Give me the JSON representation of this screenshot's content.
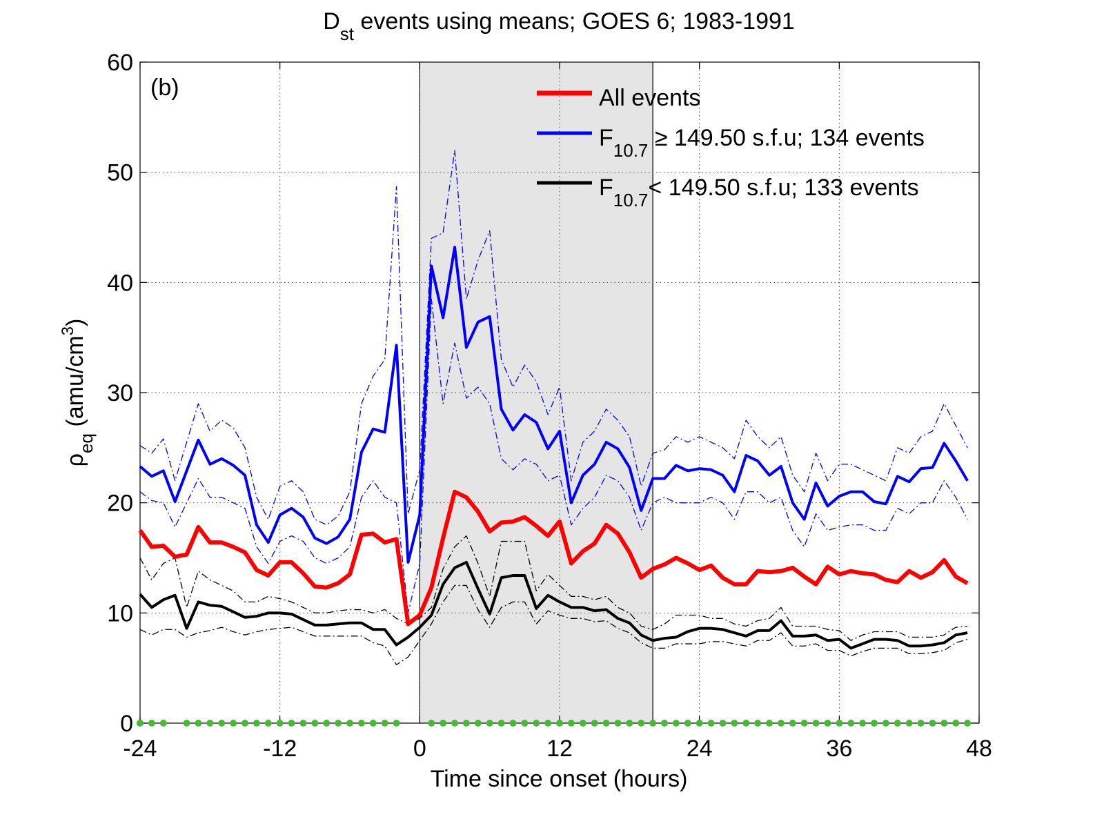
{
  "chart_data": {
    "type": "line",
    "title": {
      "main": "D",
      "sub": "st",
      "rest": " events using means; GOES 6; 1983-1991"
    },
    "x_label": "Time since onset (hours)",
    "y_label": {
      "main": "ρ",
      "sub": "eq",
      "rest": " (amu/cm",
      "sup": "3",
      "end": ")"
    },
    "annotation": "(b)",
    "x": [
      -24,
      -23,
      -22,
      -21,
      -20,
      -19,
      -18,
      -17,
      -16,
      -15,
      -14,
      -13,
      -12,
      -11,
      -10,
      -9,
      -8,
      -7,
      -6,
      -5,
      -4,
      -3,
      -2,
      -1,
      0,
      1,
      2,
      3,
      4,
      5,
      6,
      7,
      8,
      9,
      10,
      11,
      12,
      13,
      14,
      15,
      16,
      17,
      18,
      19,
      20,
      21,
      22,
      23,
      24,
      25,
      26,
      27,
      28,
      29,
      30,
      31,
      32,
      33,
      34,
      35,
      36,
      37,
      38,
      39,
      40,
      41,
      42,
      43,
      44,
      45,
      46,
      47
    ],
    "xlim": [
      -24,
      48
    ],
    "xticks": [
      -24,
      -12,
      0,
      12,
      24,
      36,
      48
    ],
    "ylim": [
      0,
      60
    ],
    "yticks": [
      0,
      10,
      20,
      30,
      40,
      50,
      60
    ],
    "grid": true,
    "shade": [
      0,
      20
    ],
    "series": [
      {
        "name": "All events",
        "color": "#ff0000",
        "width": 6,
        "values": [
          17.5,
          16.0,
          16.1,
          15.1,
          15.3,
          17.8,
          16.4,
          16.4,
          16.0,
          15.5,
          13.9,
          13.4,
          14.6,
          14.6,
          13.6,
          12.4,
          12.3,
          12.7,
          13.5,
          17.1,
          17.2,
          16.4,
          16.7,
          9.0,
          9.8,
          12.3,
          16.8,
          21.0,
          20.5,
          19.2,
          17.4,
          18.2,
          18.3,
          18.7,
          17.9,
          17.0,
          18.3,
          14.5,
          15.6,
          16.3,
          18.0,
          17.2,
          15.5,
          13.2,
          14.0,
          14.4,
          15.0,
          14.5,
          13.9,
          14.3,
          13.2,
          12.6,
          12.6,
          13.8,
          13.7,
          13.8,
          14.1,
          13.3,
          12.6,
          14.2,
          13.5,
          13.8,
          13.6,
          13.5,
          13.0,
          12.8,
          13.8,
          13.2,
          13.7,
          14.8,
          13.3,
          12.7
        ]
      },
      {
        "name": "F",
        "name_sub": "10.7",
        "name_rest": " ≥ 149.50 s.f.u; 134 events",
        "color": "#0000ff",
        "width": 4,
        "values": [
          23.3,
          22.4,
          22.9,
          20.1,
          22.9,
          25.7,
          23.5,
          24.0,
          23.4,
          22.5,
          18.0,
          16.4,
          18.9,
          19.5,
          18.7,
          16.8,
          16.3,
          16.9,
          18.5,
          24.6,
          26.7,
          26.4,
          34.3,
          14.6,
          18.9,
          41.5,
          36.8,
          43.2,
          34.1,
          36.4,
          36.9,
          28.5,
          26.6,
          28.0,
          27.3,
          24.9,
          26.5,
          20.0,
          22.5,
          23.5,
          25.5,
          24.9,
          23.2,
          19.3,
          22.2,
          22.2,
          23.4,
          22.9,
          23.1,
          23.0,
          22.5,
          21.0,
          24.3,
          23.8,
          22.5,
          23.3,
          20.0,
          18.5,
          21.8,
          19.7,
          20.6,
          21.0,
          21.0,
          20.1,
          19.9,
          22.4,
          21.9,
          23.1,
          23.2,
          25.4,
          23.8,
          22.0
        ],
        "upper": [
          25.2,
          24.5,
          25.8,
          22.0,
          25.5,
          29.0,
          26.5,
          27.5,
          26.8,
          25.0,
          20.5,
          18.5,
          21.5,
          22.0,
          21.0,
          18.5,
          18.0,
          18.8,
          21.0,
          29.0,
          31.5,
          33.0,
          48.7,
          19.0,
          23.0,
          44.0,
          44.5,
          52.0,
          38.5,
          42.0,
          44.7,
          33.0,
          30.5,
          32.5,
          31.0,
          28.0,
          30.5,
          22.0,
          25.5,
          26.5,
          28.5,
          27.5,
          26.0,
          21.5,
          24.5,
          24.8,
          26.0,
          25.5,
          26.0,
          25.5,
          25.0,
          24.0,
          27.5,
          26.0,
          25.0,
          26.0,
          22.5,
          21.0,
          24.5,
          22.0,
          23.5,
          23.5,
          23.0,
          22.5,
          22.0,
          25.0,
          24.5,
          26.0,
          26.5,
          29.0,
          27.0,
          25.0
        ],
        "lower": [
          21.0,
          20.2,
          20.0,
          17.8,
          20.0,
          22.2,
          20.5,
          20.5,
          20.0,
          19.5,
          16.0,
          14.5,
          16.5,
          17.0,
          16.5,
          15.0,
          14.5,
          15.0,
          16.0,
          20.5,
          22.0,
          20.5,
          20.0,
          10.0,
          14.5,
          38.5,
          29.0,
          34.5,
          29.5,
          30.5,
          29.0,
          24.0,
          23.0,
          24.0,
          23.5,
          22.0,
          22.5,
          18.0,
          19.5,
          20.5,
          22.5,
          22.0,
          20.5,
          17.5,
          20.0,
          20.5,
          20.0,
          20.0,
          20.0,
          20.5,
          20.0,
          18.5,
          21.0,
          21.0,
          20.0,
          20.5,
          17.5,
          16.0,
          19.0,
          17.5,
          17.8,
          18.0,
          18.0,
          17.5,
          17.5,
          19.5,
          19.0,
          20.0,
          20.0,
          22.0,
          20.5,
          18.5
        ]
      },
      {
        "name": "F",
        "name_sub": "10.7",
        "name_rest": "< 149.50 s.f.u; 133 events",
        "color": "#000000",
        "width": 4,
        "values": [
          11.7,
          10.5,
          11.2,
          11.6,
          8.6,
          11.0,
          10.7,
          10.6,
          10.1,
          9.6,
          9.7,
          10.0,
          10.0,
          9.9,
          9.4,
          8.9,
          8.9,
          9.0,
          9.1,
          9.1,
          8.5,
          8.5,
          7.1,
          7.8,
          8.7,
          9.8,
          12.6,
          14.1,
          14.6,
          12.2,
          9.9,
          13.2,
          13.4,
          13.4,
          10.4,
          11.6,
          11.0,
          10.5,
          10.5,
          10.2,
          10.3,
          9.5,
          9.1,
          8.0,
          7.5,
          7.7,
          7.8,
          8.3,
          8.6,
          8.6,
          8.5,
          8.2,
          7.9,
          8.4,
          8.4,
          9.3,
          7.9,
          7.9,
          8.0,
          7.5,
          7.6,
          6.8,
          7.2,
          7.6,
          7.6,
          7.5,
          7.0,
          7.0,
          7.1,
          7.3,
          8.0,
          8.2
        ],
        "upper": [
          15.0,
          13.0,
          14.5,
          15.0,
          10.5,
          13.8,
          13.0,
          12.5,
          12.0,
          11.0,
          11.0,
          11.5,
          11.3,
          11.0,
          10.5,
          10.0,
          10.0,
          10.2,
          10.3,
          10.3,
          10.0,
          10.3,
          9.5,
          9.0,
          9.5,
          10.5,
          14.0,
          16.0,
          17.0,
          14.5,
          11.5,
          16.5,
          16.5,
          16.5,
          12.0,
          13.5,
          12.5,
          11.5,
          11.5,
          11.2,
          11.5,
          10.5,
          10.0,
          8.8,
          8.5,
          9.0,
          9.8,
          9.8,
          9.8,
          9.5,
          9.5,
          9.0,
          8.8,
          9.3,
          9.5,
          10.5,
          8.8,
          8.8,
          8.8,
          8.5,
          8.4,
          7.5,
          8.0,
          8.3,
          8.3,
          8.3,
          7.8,
          7.8,
          7.8,
          8.0,
          8.7,
          8.8
        ],
        "lower": [
          8.5,
          8.0,
          8.5,
          8.5,
          7.8,
          8.2,
          8.4,
          8.7,
          8.3,
          8.0,
          8.3,
          8.5,
          8.6,
          8.7,
          8.3,
          7.9,
          7.9,
          7.9,
          7.9,
          7.9,
          7.3,
          7.0,
          5.3,
          6.0,
          7.5,
          9.0,
          11.0,
          12.5,
          12.5,
          10.3,
          8.7,
          10.5,
          11.0,
          11.0,
          9.0,
          10.2,
          9.8,
          9.5,
          9.5,
          9.2,
          9.3,
          8.6,
          8.2,
          7.3,
          6.8,
          6.8,
          7.2,
          7.2,
          7.2,
          7.4,
          7.4,
          7.2,
          7.0,
          7.5,
          7.5,
          8.2,
          7.0,
          7.0,
          7.2,
          6.6,
          6.6,
          6.1,
          6.5,
          6.8,
          6.8,
          6.8,
          6.3,
          6.3,
          6.4,
          6.6,
          7.3,
          7.6
        ]
      }
    ],
    "markers": {
      "color": "#44bb33",
      "values": [
        0,
        0,
        0,
        null,
        0,
        0,
        0,
        0,
        0,
        0,
        0,
        0,
        0,
        0,
        0,
        0,
        0,
        0,
        0,
        0,
        0,
        0,
        0,
        null,
        null,
        0,
        0,
        0,
        0,
        0,
        0,
        0,
        0,
        0,
        0,
        0,
        0,
        0,
        0,
        0,
        0,
        0,
        0,
        0,
        0,
        0,
        0,
        0,
        0,
        0,
        0,
        0,
        0,
        0,
        0,
        0,
        0,
        0,
        0,
        0,
        0,
        0,
        0,
        0,
        0,
        0,
        0,
        0,
        0,
        0,
        0,
        0
      ]
    }
  }
}
